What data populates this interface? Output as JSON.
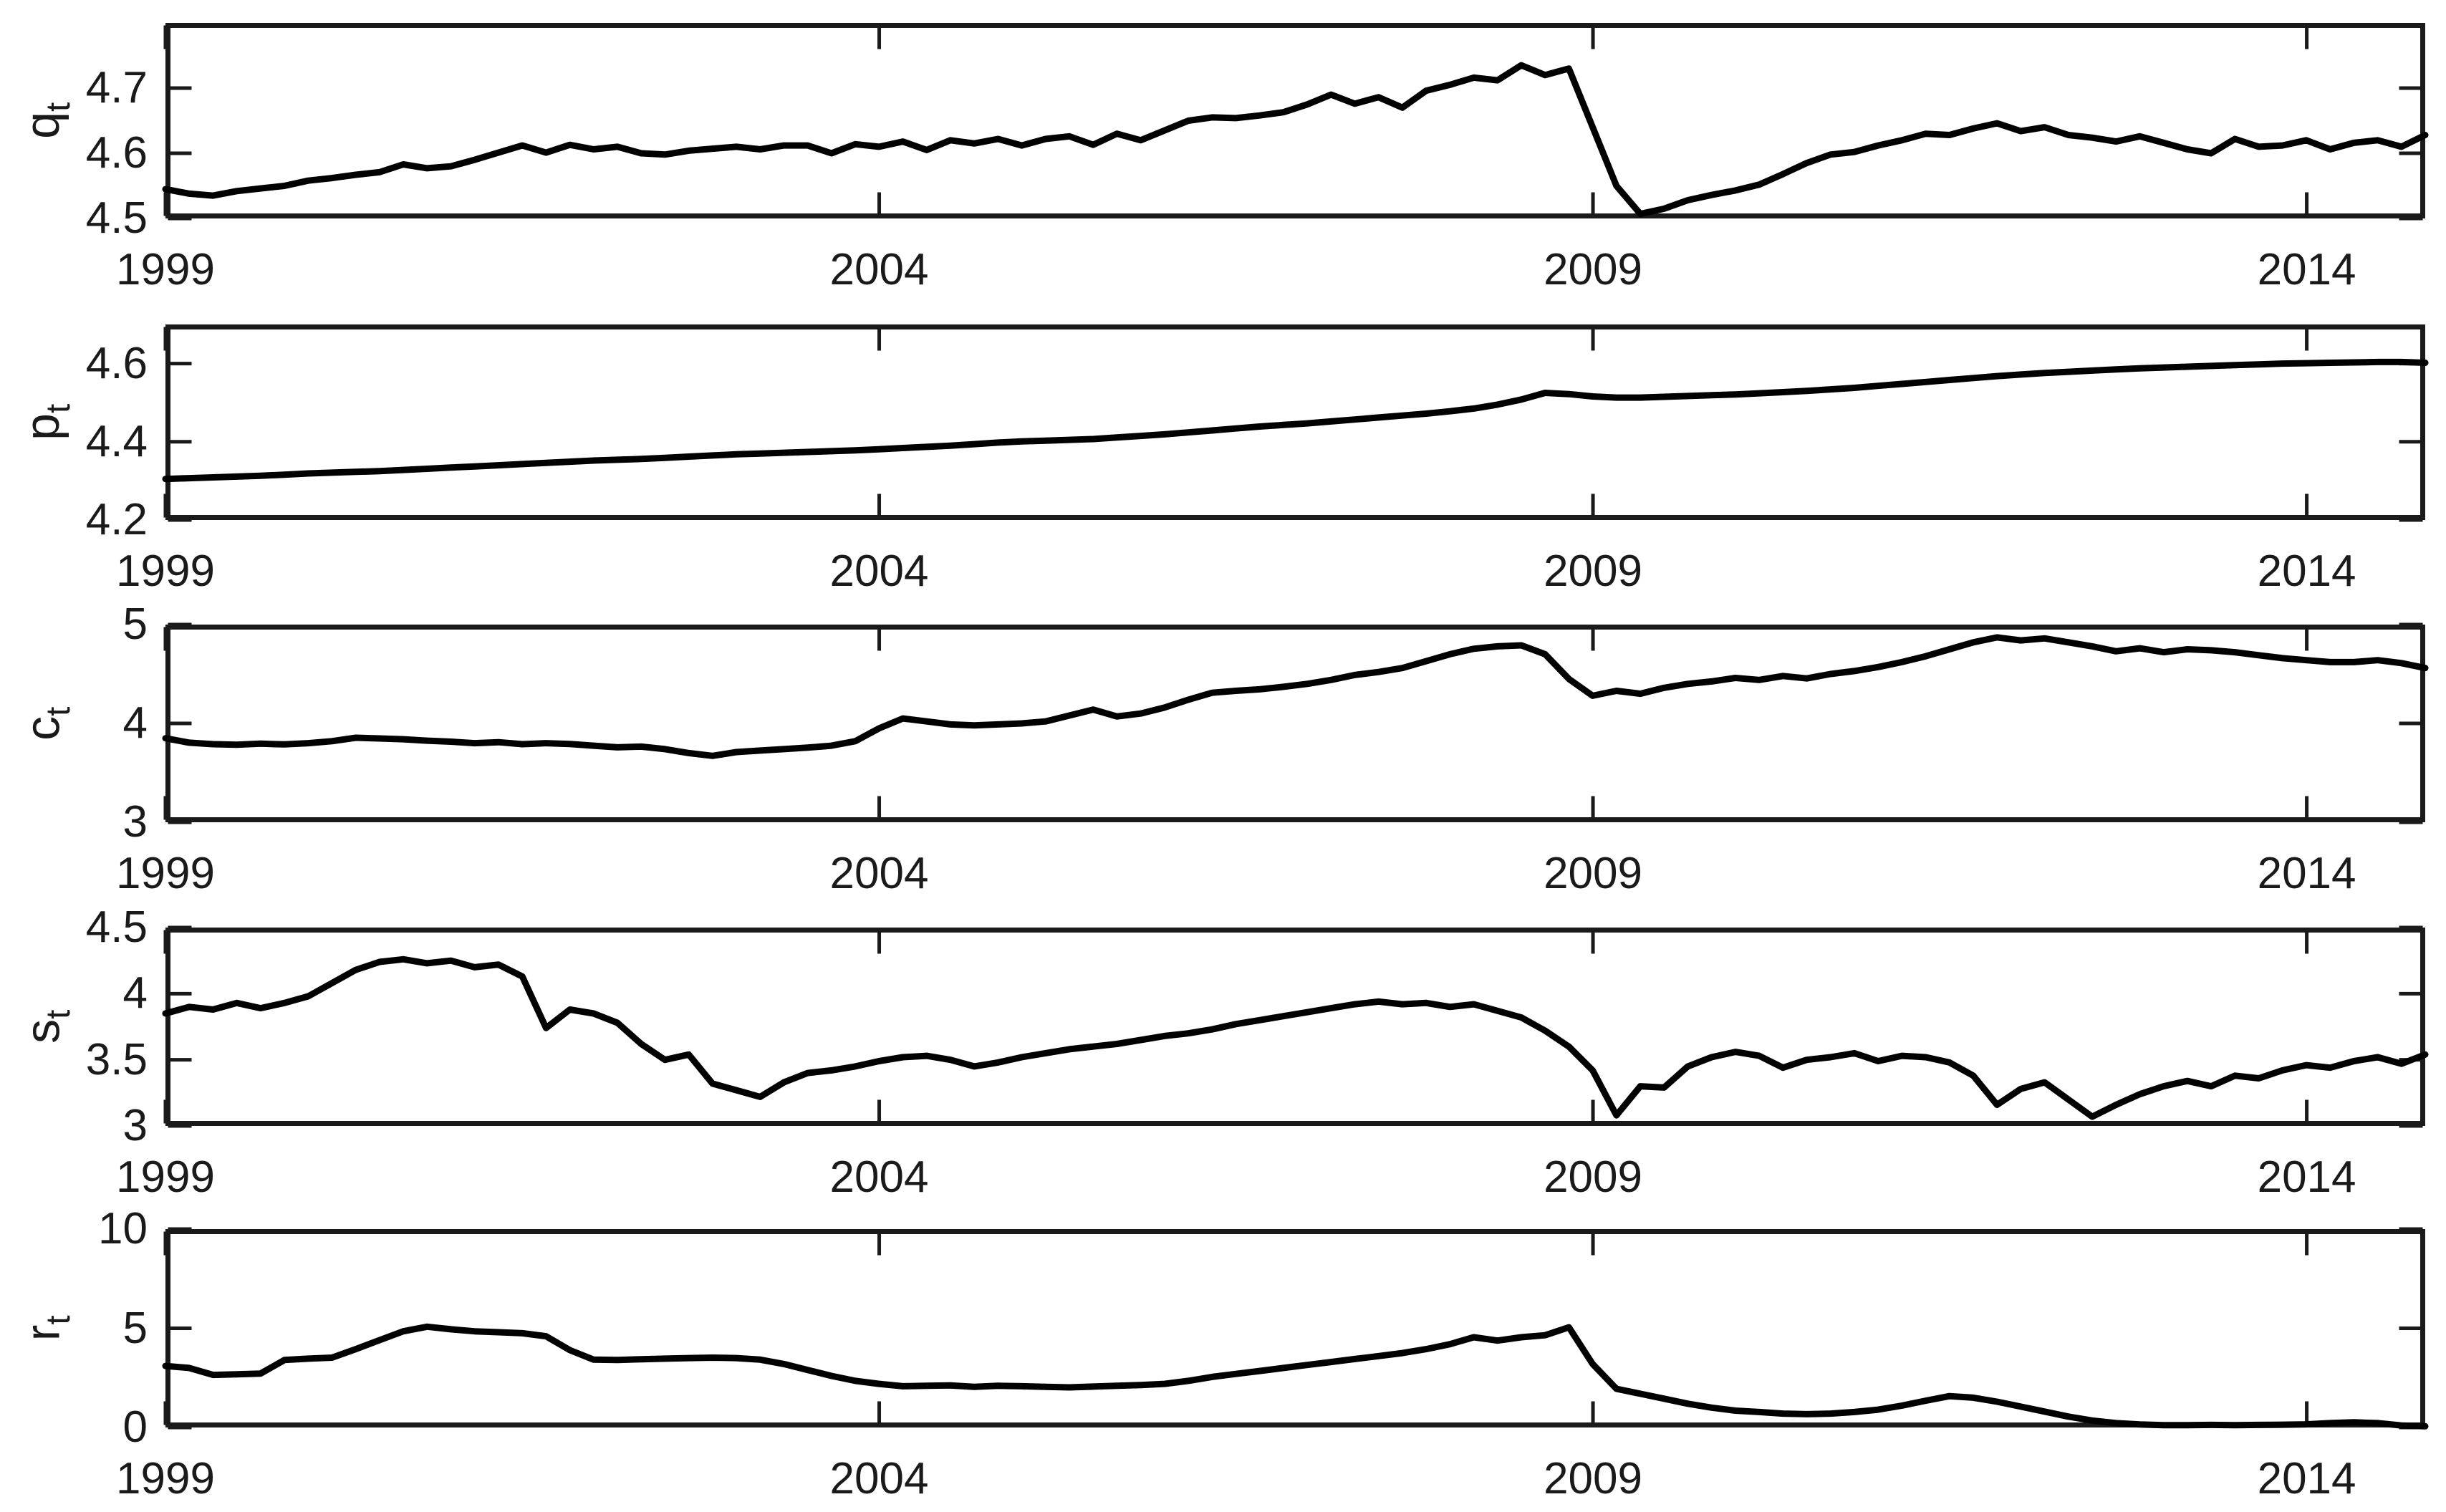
{
  "figure": {
    "background": "#ffffff",
    "series_color": "#000000",
    "axis_color": "#1a1a1a",
    "text_color": "#1a1a1a"
  },
  "chart_data": [
    {
      "type": "line",
      "ylabel_base": "q",
      "ylabel_sub": "t",
      "legend": null,
      "grid": false,
      "x_start": 1999,
      "x_step_years": 0.16667,
      "xlim": [
        1999,
        2014.83
      ],
      "ylim": [
        4.5,
        4.8
      ],
      "xticks": [
        {
          "value": 1999,
          "label": "1999"
        },
        {
          "value": 2004,
          "label": "2004"
        },
        {
          "value": 2009,
          "label": "2009"
        },
        {
          "value": 2014,
          "label": "2014"
        }
      ],
      "yticks": [
        {
          "value": 4.5,
          "label": "4.5"
        },
        {
          "value": 4.6,
          "label": "4.6"
        },
        {
          "value": 4.7,
          "label": "4.7"
        }
      ],
      "values": [
        4.545,
        4.538,
        4.535,
        4.542,
        4.546,
        4.55,
        4.558,
        4.562,
        4.567,
        4.571,
        4.583,
        4.577,
        4.58,
        4.59,
        4.601,
        4.612,
        4.601,
        4.613,
        4.606,
        4.61,
        4.6,
        4.598,
        4.604,
        4.607,
        4.61,
        4.606,
        4.612,
        4.612,
        4.6,
        4.614,
        4.61,
        4.618,
        4.605,
        4.62,
        4.615,
        4.622,
        4.612,
        4.622,
        4.626,
        4.613,
        4.63,
        4.62,
        4.635,
        4.65,
        4.655,
        4.654,
        4.658,
        4.663,
        4.675,
        4.69,
        4.676,
        4.686,
        4.67,
        4.696,
        4.705,
        4.716,
        4.712,
        4.735,
        4.72,
        4.73,
        4.64,
        4.55,
        4.507,
        4.515,
        4.528,
        4.536,
        4.543,
        4.552,
        4.568,
        4.585,
        4.598,
        4.602,
        4.612,
        4.62,
        4.63,
        4.628,
        4.638,
        4.646,
        4.634,
        4.64,
        4.628,
        4.624,
        4.618,
        4.626,
        4.616,
        4.606,
        4.6,
        4.622,
        4.61,
        4.612,
        4.62,
        4.606,
        4.616,
        4.62,
        4.61,
        4.628
      ]
    },
    {
      "type": "line",
      "ylabel_base": "p",
      "ylabel_sub": "t",
      "legend": null,
      "grid": false,
      "x_start": 1999,
      "x_step_years": 0.16667,
      "xlim": [
        1999,
        2014.83
      ],
      "ylim": [
        4.2,
        4.7
      ],
      "xticks": [
        {
          "value": 1999,
          "label": "1999"
        },
        {
          "value": 2004,
          "label": "2004"
        },
        {
          "value": 2009,
          "label": "2009"
        },
        {
          "value": 2014,
          "label": "2014"
        }
      ],
      "yticks": [
        {
          "value": 4.2,
          "label": "4.2"
        },
        {
          "value": 4.4,
          "label": "4.4"
        },
        {
          "value": 4.6,
          "label": "4.6"
        }
      ],
      "values": [
        4.305,
        4.307,
        4.309,
        4.311,
        4.313,
        4.316,
        4.319,
        4.321,
        4.323,
        4.325,
        4.328,
        4.331,
        4.334,
        4.337,
        4.34,
        4.343,
        4.346,
        4.349,
        4.352,
        4.354,
        4.356,
        4.359,
        4.362,
        4.365,
        4.368,
        4.37,
        4.372,
        4.374,
        4.376,
        4.378,
        4.381,
        4.384,
        4.387,
        4.39,
        4.394,
        4.398,
        4.401,
        4.403,
        4.405,
        4.407,
        4.411,
        4.415,
        4.419,
        4.424,
        4.429,
        4.434,
        4.439,
        4.443,
        4.447,
        4.452,
        4.457,
        4.462,
        4.467,
        4.472,
        4.478,
        4.485,
        4.495,
        4.508,
        4.525,
        4.522,
        4.516,
        4.513,
        4.513,
        4.515,
        4.517,
        4.519,
        4.521,
        4.524,
        4.527,
        4.53,
        4.534,
        4.538,
        4.543,
        4.548,
        4.553,
        4.558,
        4.563,
        4.568,
        4.572,
        4.576,
        4.579,
        4.582,
        4.585,
        4.588,
        4.59,
        4.592,
        4.594,
        4.596,
        4.598,
        4.6,
        4.601,
        4.602,
        4.603,
        4.604,
        4.604,
        4.602
      ]
    },
    {
      "type": "line",
      "ylabel_base": "c",
      "ylabel_sub": "t",
      "legend": null,
      "grid": false,
      "x_start": 1999,
      "x_step_years": 0.16667,
      "xlim": [
        1999,
        2014.83
      ],
      "ylim": [
        3,
        5
      ],
      "xticks": [
        {
          "value": 1999,
          "label": "1999"
        },
        {
          "value": 2004,
          "label": "2004"
        },
        {
          "value": 2009,
          "label": "2009"
        },
        {
          "value": 2014,
          "label": "2014"
        }
      ],
      "yticks": [
        {
          "value": 3,
          "label": "3"
        },
        {
          "value": 4,
          "label": "4"
        },
        {
          "value": 5,
          "label": "5"
        }
      ],
      "values": [
        3.85,
        3.805,
        3.79,
        3.785,
        3.795,
        3.788,
        3.8,
        3.82,
        3.855,
        3.848,
        3.84,
        3.825,
        3.815,
        3.8,
        3.81,
        3.79,
        3.8,
        3.792,
        3.775,
        3.758,
        3.765,
        3.74,
        3.7,
        3.672,
        3.71,
        3.725,
        3.74,
        3.755,
        3.775,
        3.82,
        3.95,
        4.05,
        4.02,
        3.99,
        3.98,
        3.99,
        4.0,
        4.02,
        4.08,
        4.14,
        4.07,
        4.1,
        4.16,
        4.24,
        4.31,
        4.33,
        4.345,
        4.37,
        4.4,
        4.44,
        4.49,
        4.52,
        4.56,
        4.63,
        4.7,
        4.755,
        4.78,
        4.79,
        4.7,
        4.45,
        4.28,
        4.33,
        4.3,
        4.36,
        4.4,
        4.425,
        4.46,
        4.44,
        4.48,
        4.455,
        4.5,
        4.53,
        4.57,
        4.62,
        4.68,
        4.75,
        4.82,
        4.87,
        4.84,
        4.86,
        4.82,
        4.78,
        4.73,
        4.76,
        4.72,
        4.75,
        4.74,
        4.72,
        4.69,
        4.66,
        4.64,
        4.62,
        4.62,
        4.64,
        4.61,
        4.56
      ]
    },
    {
      "type": "line",
      "ylabel_base": "s",
      "ylabel_sub": "t",
      "legend": null,
      "grid": false,
      "x_start": 1999,
      "x_step_years": 0.16667,
      "xlim": [
        1999,
        2014.83
      ],
      "ylim": [
        3,
        4.5
      ],
      "xticks": [
        {
          "value": 1999,
          "label": "1999"
        },
        {
          "value": 2004,
          "label": "2004"
        },
        {
          "value": 2009,
          "label": "2009"
        },
        {
          "value": 2014,
          "label": "2014"
        }
      ],
      "yticks": [
        {
          "value": 3,
          "label": "3"
        },
        {
          "value": 3.5,
          "label": "3.5"
        },
        {
          "value": 4,
          "label": "4"
        },
        {
          "value": 4.5,
          "label": "4.5"
        }
      ],
      "values": [
        3.85,
        3.9,
        3.88,
        3.93,
        3.89,
        3.93,
        3.98,
        4.08,
        4.18,
        4.24,
        4.26,
        4.23,
        4.25,
        4.2,
        4.22,
        4.13,
        3.74,
        3.88,
        3.85,
        3.78,
        3.62,
        3.5,
        3.54,
        3.32,
        3.27,
        3.22,
        3.33,
        3.4,
        3.42,
        3.45,
        3.49,
        3.52,
        3.53,
        3.5,
        3.45,
        3.48,
        3.52,
        3.55,
        3.58,
        3.6,
        3.62,
        3.65,
        3.68,
        3.7,
        3.73,
        3.77,
        3.8,
        3.83,
        3.86,
        3.89,
        3.92,
        3.94,
        3.92,
        3.93,
        3.9,
        3.92,
        3.87,
        3.82,
        3.72,
        3.6,
        3.42,
        3.08,
        3.3,
        3.29,
        3.45,
        3.52,
        3.56,
        3.53,
        3.44,
        3.5,
        3.52,
        3.55,
        3.49,
        3.53,
        3.52,
        3.48,
        3.38,
        3.16,
        3.28,
        3.33,
        3.2,
        3.07,
        3.16,
        3.24,
        3.3,
        3.34,
        3.3,
        3.38,
        3.36,
        3.42,
        3.46,
        3.44,
        3.49,
        3.52,
        3.47,
        3.54
      ]
    },
    {
      "type": "line",
      "ylabel_base": "r",
      "ylabel_sub": "t",
      "legend": null,
      "grid": false,
      "x_start": 1999,
      "x_step_years": 0.16667,
      "xlim": [
        1999,
        2014.83
      ],
      "ylim": [
        0,
        10
      ],
      "xticks": [
        {
          "value": 1999,
          "label": "1999"
        },
        {
          "value": 2004,
          "label": "2004"
        },
        {
          "value": 2009,
          "label": "2009"
        },
        {
          "value": 2014,
          "label": "2014"
        }
      ],
      "yticks": [
        {
          "value": 0,
          "label": "0"
        },
        {
          "value": 5,
          "label": "5"
        },
        {
          "value": 10,
          "label": "10"
        }
      ],
      "values": [
        3.1,
        3.0,
        2.65,
        2.68,
        2.72,
        3.4,
        3.47,
        3.52,
        3.95,
        4.4,
        4.85,
        5.08,
        4.95,
        4.85,
        4.8,
        4.75,
        4.6,
        3.9,
        3.42,
        3.4,
        3.44,
        3.47,
        3.5,
        3.52,
        3.5,
        3.42,
        3.2,
        2.9,
        2.6,
        2.35,
        2.2,
        2.08,
        2.1,
        2.12,
        2.05,
        2.1,
        2.08,
        2.05,
        2.02,
        2.06,
        2.1,
        2.14,
        2.2,
        2.35,
        2.55,
        2.7,
        2.85,
        3.0,
        3.15,
        3.3,
        3.45,
        3.6,
        3.75,
        3.95,
        4.2,
        4.55,
        4.38,
        4.55,
        4.65,
        5.05,
        3.2,
        1.95,
        1.7,
        1.45,
        1.2,
        1.0,
        0.85,
        0.78,
        0.7,
        0.67,
        0.7,
        0.78,
        0.9,
        1.1,
        1.35,
        1.58,
        1.5,
        1.3,
        1.05,
        0.8,
        0.55,
        0.35,
        0.22,
        0.15,
        0.12,
        0.12,
        0.13,
        0.12,
        0.13,
        0.14,
        0.16,
        0.22,
        0.26,
        0.22,
        0.1,
        0.06
      ]
    }
  ]
}
